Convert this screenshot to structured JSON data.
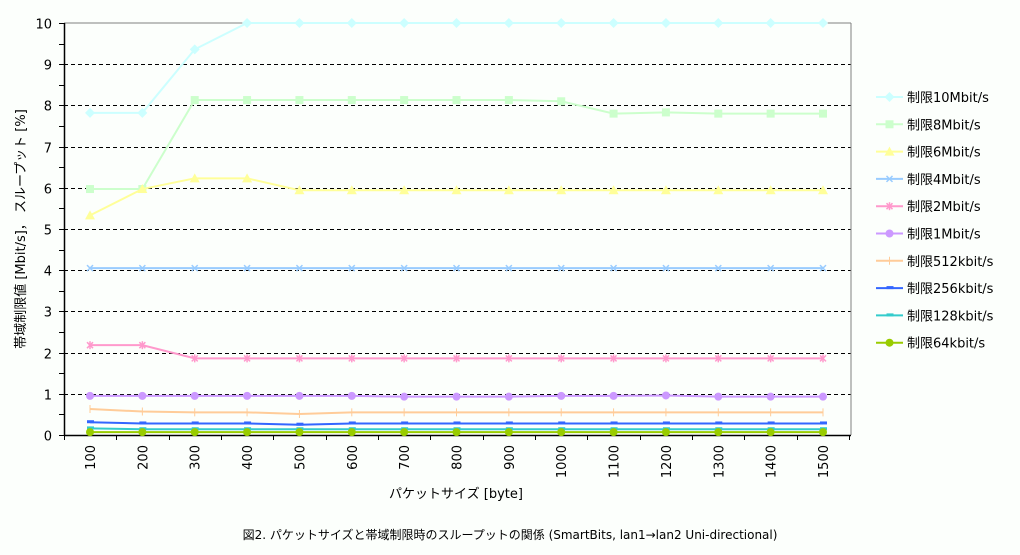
{
  "caption": "図2. パケットサイズと帯域制限時のスループットの関係 (SmartBits, lan1→lan2 Uni-directional)",
  "chart_data": {
    "type": "line",
    "title": "図2. パケットサイズと帯域制限時のスループットの関係 (SmartBits, lan1→lan2 Uni-directional)",
    "xlabel": "パケットサイズ [byte]",
    "ylabel": "帯域制限値 [Mbit/s]， スループット [%]",
    "x": [
      100,
      200,
      300,
      400,
      500,
      600,
      700,
      800,
      900,
      1000,
      1100,
      1200,
      1300,
      1400,
      1500
    ],
    "ylim": [
      0,
      10
    ],
    "yticks": [
      0,
      1,
      2,
      3,
      4,
      5,
      6,
      7,
      8,
      9,
      10
    ],
    "grid": "horizontal dashed",
    "legend_position": "right",
    "series": [
      {
        "name": "制限10Mbit/s",
        "color": "#ccffff",
        "marker": "diamond",
        "values": [
          7.82,
          7.82,
          9.36,
          10,
          10,
          10,
          10,
          10,
          10,
          10,
          10,
          10,
          10,
          10,
          10
        ]
      },
      {
        "name": "制限8Mbit/s",
        "color": "#ccffcc",
        "marker": "square",
        "values": [
          5.97,
          5.97,
          8.13,
          8.13,
          8.13,
          8.13,
          8.13,
          8.13,
          8.13,
          8.1,
          7.8,
          7.83,
          7.8,
          7.8,
          7.8
        ]
      },
      {
        "name": "制限6Mbit/s",
        "color": "#ffff99",
        "marker": "triangle",
        "values": [
          5.33,
          5.97,
          6.23,
          6.23,
          5.94,
          5.94,
          5.94,
          5.94,
          5.94,
          5.94,
          5.94,
          5.94,
          5.94,
          5.94,
          5.94
        ]
      },
      {
        "name": "制限4Mbit/s",
        "color": "#99ccff",
        "marker": "x",
        "values": [
          4.05,
          4.05,
          4.05,
          4.05,
          4.05,
          4.05,
          4.05,
          4.05,
          4.05,
          4.05,
          4.05,
          4.05,
          4.05,
          4.05,
          4.05
        ]
      },
      {
        "name": "制限2Mbit/s",
        "color": "#ff99cc",
        "marker": "star",
        "values": [
          2.18,
          2.18,
          1.86,
          1.86,
          1.86,
          1.86,
          1.86,
          1.86,
          1.86,
          1.86,
          1.86,
          1.86,
          1.86,
          1.86,
          1.86
        ]
      },
      {
        "name": "制限1Mbit/s",
        "color": "#cc99ff",
        "marker": "circle",
        "values": [
          0.95,
          0.95,
          0.95,
          0.95,
          0.95,
          0.95,
          0.93,
          0.93,
          0.93,
          0.95,
          0.95,
          0.96,
          0.93,
          0.93,
          0.93
        ]
      },
      {
        "name": "制限512kbit/s",
        "color": "#ffcc99",
        "marker": "plus",
        "values": [
          0.63,
          0.57,
          0.55,
          0.55,
          0.51,
          0.55,
          0.55,
          0.55,
          0.55,
          0.55,
          0.55,
          0.55,
          0.55,
          0.55,
          0.55
        ]
      },
      {
        "name": "制限256kbit/s",
        "color": "#3366ff",
        "marker": "dash",
        "values": [
          0.31,
          0.28,
          0.28,
          0.28,
          0.25,
          0.28,
          0.28,
          0.28,
          0.28,
          0.28,
          0.28,
          0.28,
          0.28,
          0.28,
          0.28
        ]
      },
      {
        "name": "制限128kbit/s",
        "color": "#33cccc",
        "marker": "dash",
        "values": [
          0.16,
          0.14,
          0.14,
          0.14,
          0.14,
          0.14,
          0.14,
          0.14,
          0.14,
          0.14,
          0.14,
          0.14,
          0.14,
          0.14,
          0.14
        ]
      },
      {
        "name": "制限64kbit/s",
        "color": "#99cc00",
        "marker": "circle",
        "values": [
          0.07,
          0.07,
          0.07,
          0.07,
          0.07,
          0.07,
          0.07,
          0.07,
          0.07,
          0.07,
          0.07,
          0.07,
          0.07,
          0.07,
          0.07
        ]
      }
    ]
  }
}
